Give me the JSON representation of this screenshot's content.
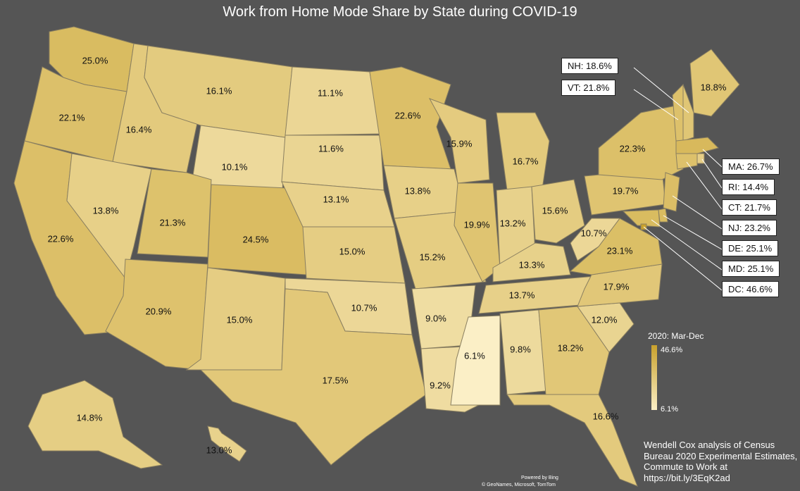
{
  "title": "Work from Home Mode Share by State during COVID-19",
  "legend": {
    "title": "2020: Mar-Dec",
    "max_label": "46.6%",
    "min_label": "6.1%",
    "min_color": "#fbefc6",
    "max_color": "#c8a12c"
  },
  "credit": {
    "line1": "Wendell Cox analysis of Census",
    "line2": "Bureau 2020 Experimental Estimates,",
    "line3": "Commute to Work at",
    "line4": "https://bit.ly/3EqK2ad"
  },
  "attribution": {
    "line1": "Powered by Bing",
    "line2": "© GeoNames, Microsoft, TomTom"
  },
  "states": [
    {
      "code": "WA",
      "label": "25.0%",
      "value": 25.0
    },
    {
      "code": "OR",
      "label": "22.1%",
      "value": 22.1
    },
    {
      "code": "CA",
      "label": "22.6%",
      "value": 22.6
    },
    {
      "code": "ID",
      "label": "16.4%",
      "value": 16.4
    },
    {
      "code": "NV",
      "label": "13.8%",
      "value": 13.8
    },
    {
      "code": "MT",
      "label": "16.1%",
      "value": 16.1
    },
    {
      "code": "WY",
      "label": "10.1%",
      "value": 10.1
    },
    {
      "code": "UT",
      "label": "21.3%",
      "value": 21.3
    },
    {
      "code": "AZ",
      "label": "20.9%",
      "value": 20.9
    },
    {
      "code": "CO",
      "label": "24.5%",
      "value": 24.5
    },
    {
      "code": "NM",
      "label": "15.0%",
      "value": 15.0
    },
    {
      "code": "ND",
      "label": "11.1%",
      "value": 11.1
    },
    {
      "code": "SD",
      "label": "11.6%",
      "value": 11.6
    },
    {
      "code": "NE",
      "label": "13.1%",
      "value": 13.1
    },
    {
      "code": "KS",
      "label": "15.0%",
      "value": 15.0
    },
    {
      "code": "OK",
      "label": "10.7%",
      "value": 10.7
    },
    {
      "code": "TX",
      "label": "17.5%",
      "value": 17.5
    },
    {
      "code": "MN",
      "label": "22.6%",
      "value": 22.6
    },
    {
      "code": "IA",
      "label": "13.8%",
      "value": 13.8
    },
    {
      "code": "MO",
      "label": "15.2%",
      "value": 15.2
    },
    {
      "code": "AR",
      "label": "9.0%",
      "value": 9.0
    },
    {
      "code": "LA",
      "label": "9.2%",
      "value": 9.2
    },
    {
      "code": "WI",
      "label": "15.9%",
      "value": 15.9
    },
    {
      "code": "IL",
      "label": "19.9%",
      "value": 19.9
    },
    {
      "code": "MI",
      "label": "16.7%",
      "value": 16.7
    },
    {
      "code": "IN",
      "label": "13.2%",
      "value": 13.2
    },
    {
      "code": "OH",
      "label": "15.6%",
      "value": 15.6
    },
    {
      "code": "KY",
      "label": "13.3%",
      "value": 13.3
    },
    {
      "code": "TN",
      "label": "13.7%",
      "value": 13.7
    },
    {
      "code": "MS",
      "label": "6.1%",
      "value": 6.1
    },
    {
      "code": "AL",
      "label": "9.8%",
      "value": 9.8
    },
    {
      "code": "GA",
      "label": "18.2%",
      "value": 18.2
    },
    {
      "code": "FL",
      "label": "16.6%",
      "value": 16.6
    },
    {
      "code": "SC",
      "label": "12.0%",
      "value": 12.0
    },
    {
      "code": "NC",
      "label": "17.9%",
      "value": 17.9
    },
    {
      "code": "VA",
      "label": "23.1%",
      "value": 23.1
    },
    {
      "code": "WV",
      "label": "10.7%",
      "value": 10.7
    },
    {
      "code": "PA",
      "label": "19.7%",
      "value": 19.7
    },
    {
      "code": "NY",
      "label": "22.3%",
      "value": 22.3
    },
    {
      "code": "ME",
      "label": "18.8%",
      "value": 18.8
    },
    {
      "code": "AK",
      "label": "14.8%",
      "value": 14.8
    },
    {
      "code": "HI",
      "label": "13.0%",
      "value": 13.0
    },
    {
      "code": "NH",
      "label": "18.6%",
      "value": 18.6
    },
    {
      "code": "VT",
      "label": "21.8%",
      "value": 21.8
    },
    {
      "code": "MA",
      "label": "26.7%",
      "value": 26.7
    },
    {
      "code": "RI",
      "label": "14.4%",
      "value": 14.4
    },
    {
      "code": "CT",
      "label": "21.7%",
      "value": 21.7
    },
    {
      "code": "NJ",
      "label": "23.2%",
      "value": 23.2
    },
    {
      "code": "DE",
      "label": "25.1%",
      "value": 25.1
    },
    {
      "code": "MD",
      "label": "25.1%",
      "value": 25.1
    },
    {
      "code": "DC",
      "label": "46.6%",
      "value": 46.6
    }
  ],
  "callouts": [
    {
      "code": "NH",
      "text": "NH: 18.6%"
    },
    {
      "code": "VT",
      "text": "VT: 21.8%"
    },
    {
      "code": "MA",
      "text": "MA: 26.7%"
    },
    {
      "code": "RI",
      "text": "RI: 14.4%"
    },
    {
      "code": "CT",
      "text": "CT: 21.7%"
    },
    {
      "code": "NJ",
      "text": "NJ: 23.2%"
    },
    {
      "code": "DE",
      "text": "DE: 25.1%"
    },
    {
      "code": "MD",
      "text": "MD: 25.1%"
    },
    {
      "code": "DC",
      "text": "DC: 46.6%"
    }
  ]
}
